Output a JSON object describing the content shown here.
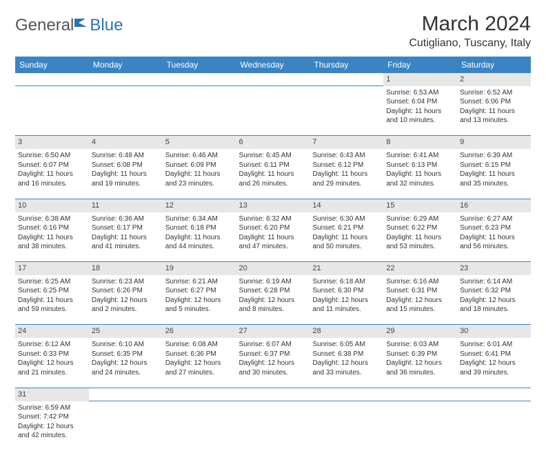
{
  "logo": {
    "text1": "General",
    "text2": "Blue",
    "icon_color": "#2872b8"
  },
  "title": "March 2024",
  "location": "Cutigliano, Tuscany, Italy",
  "colors": {
    "header_bg": "#3b84c4",
    "header_fg": "#ffffff",
    "daynum_bg": "#e7e7e7",
    "border": "#3b84c4",
    "text": "#333333"
  },
  "fonts": {
    "title_size": 30,
    "location_size": 16,
    "th_size": 12,
    "td_size": 10
  },
  "weekdays": [
    "Sunday",
    "Monday",
    "Tuesday",
    "Wednesday",
    "Thursday",
    "Friday",
    "Saturday"
  ],
  "weeks": [
    {
      "nums": [
        "",
        "",
        "",
        "",
        "",
        "1",
        "2"
      ],
      "cells": [
        null,
        null,
        null,
        null,
        null,
        {
          "sunrise": "Sunrise: 6:53 AM",
          "sunset": "Sunset: 6:04 PM",
          "daylight": "Daylight: 11 hours and 10 minutes."
        },
        {
          "sunrise": "Sunrise: 6:52 AM",
          "sunset": "Sunset: 6:06 PM",
          "daylight": "Daylight: 11 hours and 13 minutes."
        }
      ]
    },
    {
      "nums": [
        "3",
        "4",
        "5",
        "6",
        "7",
        "8",
        "9"
      ],
      "cells": [
        {
          "sunrise": "Sunrise: 6:50 AM",
          "sunset": "Sunset: 6:07 PM",
          "daylight": "Daylight: 11 hours and 16 minutes."
        },
        {
          "sunrise": "Sunrise: 6:48 AM",
          "sunset": "Sunset: 6:08 PM",
          "daylight": "Daylight: 11 hours and 19 minutes."
        },
        {
          "sunrise": "Sunrise: 6:46 AM",
          "sunset": "Sunset: 6:09 PM",
          "daylight": "Daylight: 11 hours and 23 minutes."
        },
        {
          "sunrise": "Sunrise: 6:45 AM",
          "sunset": "Sunset: 6:11 PM",
          "daylight": "Daylight: 11 hours and 26 minutes."
        },
        {
          "sunrise": "Sunrise: 6:43 AM",
          "sunset": "Sunset: 6:12 PM",
          "daylight": "Daylight: 11 hours and 29 minutes."
        },
        {
          "sunrise": "Sunrise: 6:41 AM",
          "sunset": "Sunset: 6:13 PM",
          "daylight": "Daylight: 11 hours and 32 minutes."
        },
        {
          "sunrise": "Sunrise: 6:39 AM",
          "sunset": "Sunset: 6:15 PM",
          "daylight": "Daylight: 11 hours and 35 minutes."
        }
      ]
    },
    {
      "nums": [
        "10",
        "11",
        "12",
        "13",
        "14",
        "15",
        "16"
      ],
      "cells": [
        {
          "sunrise": "Sunrise: 6:38 AM",
          "sunset": "Sunset: 6:16 PM",
          "daylight": "Daylight: 11 hours and 38 minutes."
        },
        {
          "sunrise": "Sunrise: 6:36 AM",
          "sunset": "Sunset: 6:17 PM",
          "daylight": "Daylight: 11 hours and 41 minutes."
        },
        {
          "sunrise": "Sunrise: 6:34 AM",
          "sunset": "Sunset: 6:18 PM",
          "daylight": "Daylight: 11 hours and 44 minutes."
        },
        {
          "sunrise": "Sunrise: 6:32 AM",
          "sunset": "Sunset: 6:20 PM",
          "daylight": "Daylight: 11 hours and 47 minutes."
        },
        {
          "sunrise": "Sunrise: 6:30 AM",
          "sunset": "Sunset: 6:21 PM",
          "daylight": "Daylight: 11 hours and 50 minutes."
        },
        {
          "sunrise": "Sunrise: 6:29 AM",
          "sunset": "Sunset: 6:22 PM",
          "daylight": "Daylight: 11 hours and 53 minutes."
        },
        {
          "sunrise": "Sunrise: 6:27 AM",
          "sunset": "Sunset: 6:23 PM",
          "daylight": "Daylight: 11 hours and 56 minutes."
        }
      ]
    },
    {
      "nums": [
        "17",
        "18",
        "19",
        "20",
        "21",
        "22",
        "23"
      ],
      "cells": [
        {
          "sunrise": "Sunrise: 6:25 AM",
          "sunset": "Sunset: 6:25 PM",
          "daylight": "Daylight: 11 hours and 59 minutes."
        },
        {
          "sunrise": "Sunrise: 6:23 AM",
          "sunset": "Sunset: 6:26 PM",
          "daylight": "Daylight: 12 hours and 2 minutes."
        },
        {
          "sunrise": "Sunrise: 6:21 AM",
          "sunset": "Sunset: 6:27 PM",
          "daylight": "Daylight: 12 hours and 5 minutes."
        },
        {
          "sunrise": "Sunrise: 6:19 AM",
          "sunset": "Sunset: 6:28 PM",
          "daylight": "Daylight: 12 hours and 8 minutes."
        },
        {
          "sunrise": "Sunrise: 6:18 AM",
          "sunset": "Sunset: 6:30 PM",
          "daylight": "Daylight: 12 hours and 11 minutes."
        },
        {
          "sunrise": "Sunrise: 6:16 AM",
          "sunset": "Sunset: 6:31 PM",
          "daylight": "Daylight: 12 hours and 15 minutes."
        },
        {
          "sunrise": "Sunrise: 6:14 AM",
          "sunset": "Sunset: 6:32 PM",
          "daylight": "Daylight: 12 hours and 18 minutes."
        }
      ]
    },
    {
      "nums": [
        "24",
        "25",
        "26",
        "27",
        "28",
        "29",
        "30"
      ],
      "cells": [
        {
          "sunrise": "Sunrise: 6:12 AM",
          "sunset": "Sunset: 6:33 PM",
          "daylight": "Daylight: 12 hours and 21 minutes."
        },
        {
          "sunrise": "Sunrise: 6:10 AM",
          "sunset": "Sunset: 6:35 PM",
          "daylight": "Daylight: 12 hours and 24 minutes."
        },
        {
          "sunrise": "Sunrise: 6:08 AM",
          "sunset": "Sunset: 6:36 PM",
          "daylight": "Daylight: 12 hours and 27 minutes."
        },
        {
          "sunrise": "Sunrise: 6:07 AM",
          "sunset": "Sunset: 6:37 PM",
          "daylight": "Daylight: 12 hours and 30 minutes."
        },
        {
          "sunrise": "Sunrise: 6:05 AM",
          "sunset": "Sunset: 6:38 PM",
          "daylight": "Daylight: 12 hours and 33 minutes."
        },
        {
          "sunrise": "Sunrise: 6:03 AM",
          "sunset": "Sunset: 6:39 PM",
          "daylight": "Daylight: 12 hours and 36 minutes."
        },
        {
          "sunrise": "Sunrise: 6:01 AM",
          "sunset": "Sunset: 6:41 PM",
          "daylight": "Daylight: 12 hours and 39 minutes."
        }
      ]
    },
    {
      "nums": [
        "31",
        "",
        "",
        "",
        "",
        "",
        ""
      ],
      "cells": [
        {
          "sunrise": "Sunrise: 6:59 AM",
          "sunset": "Sunset: 7:42 PM",
          "daylight": "Daylight: 12 hours and 42 minutes."
        },
        null,
        null,
        null,
        null,
        null,
        null
      ]
    }
  ]
}
